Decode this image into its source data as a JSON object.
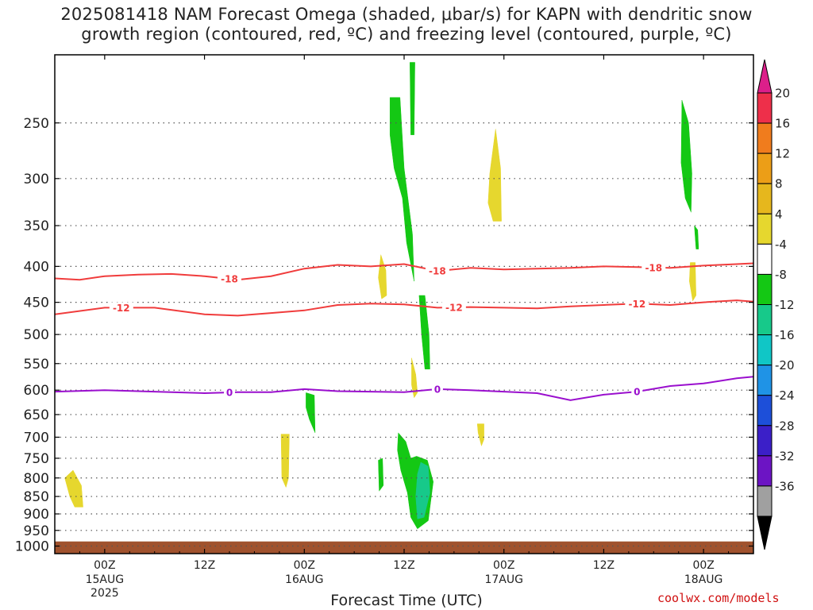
{
  "chart_data": {
    "type": "contour",
    "title_line1": "2025081418 NAM Forecast Omega (shaded, μbar/s) for KAPN with dendritic snow",
    "title_line2": "growth region (contoured, red, ºC) and freezing level (contoured, purple, ºC)",
    "xlabel": "Forecast Time (UTC)",
    "credit": "coolwx.com/models",
    "x_range_hours": [
      -6,
      78
    ],
    "y_axis": {
      "scale": "log-pressure",
      "unit": "hPa",
      "range": [
        1025,
        200
      ],
      "ticks": [
        250,
        300,
        350,
        400,
        450,
        500,
        550,
        600,
        650,
        700,
        750,
        800,
        850,
        900,
        950,
        1000
      ]
    },
    "x_ticks": [
      {
        "hour": 0,
        "line1": "00Z",
        "line2": "15AUG",
        "line3": "2025"
      },
      {
        "hour": 12,
        "line1": "12Z",
        "line2": "",
        "line3": ""
      },
      {
        "hour": 24,
        "line1": "00Z",
        "line2": "16AUG",
        "line3": ""
      },
      {
        "hour": 36,
        "line1": "12Z",
        "line2": "",
        "line3": ""
      },
      {
        "hour": 48,
        "line1": "00Z",
        "line2": "17AUG",
        "line3": ""
      },
      {
        "hour": 60,
        "line1": "12Z",
        "line2": "",
        "line3": ""
      },
      {
        "hour": 72,
        "line1": "00Z",
        "line2": "18AUG",
        "line3": ""
      }
    ],
    "colorbar": {
      "levels": [
        20,
        16,
        12,
        8,
        4,
        -4,
        -8,
        -12,
        -16,
        -20,
        -24,
        -28,
        -32,
        -36
      ],
      "colors": [
        "#ee2f4a",
        "#f07c1d",
        "#ec9e17",
        "#e6b71d",
        "#e6d72e",
        "#ffffff",
        "#14c814",
        "#17c98a",
        "#10c6c6",
        "#1f93e6",
        "#1d4fd9",
        "#3b1fc8",
        "#6c14c4",
        "#a20ac3",
        "#a0a0a0"
      ],
      "top_color": "#dc1f8a",
      "bottom_color": "#000000"
    },
    "contours": [
      {
        "label": "-18",
        "color": "#f03c3c",
        "points": [
          [
            -6,
            416
          ],
          [
            -3,
            418
          ],
          [
            0,
            413
          ],
          [
            4,
            411
          ],
          [
            8,
            410
          ],
          [
            12,
            413
          ],
          [
            16,
            418
          ],
          [
            20,
            413
          ],
          [
            24,
            403
          ],
          [
            28,
            398
          ],
          [
            32,
            400
          ],
          [
            36,
            397
          ],
          [
            40,
            406
          ],
          [
            44,
            402
          ],
          [
            48,
            404
          ],
          [
            52,
            403
          ],
          [
            56,
            402
          ],
          [
            60,
            400
          ],
          [
            64,
            401
          ],
          [
            68,
            402
          ],
          [
            72,
            399
          ],
          [
            76,
            397
          ],
          [
            78,
            396
          ]
        ]
      },
      {
        "label": "-12",
        "color": "#f03c3c",
        "points": [
          [
            -6,
            468
          ],
          [
            0,
            458
          ],
          [
            6,
            458
          ],
          [
            12,
            468
          ],
          [
            16,
            470
          ],
          [
            20,
            466
          ],
          [
            24,
            462
          ],
          [
            28,
            454
          ],
          [
            32,
            452
          ],
          [
            36,
            453
          ],
          [
            40,
            458
          ],
          [
            44,
            457
          ],
          [
            48,
            458
          ],
          [
            52,
            459
          ],
          [
            56,
            456
          ],
          [
            60,
            454
          ],
          [
            64,
            452
          ],
          [
            68,
            454
          ],
          [
            72,
            450
          ],
          [
            76,
            447
          ],
          [
            78,
            449
          ]
        ]
      },
      {
        "label": "0",
        "color": "#9a0fce",
        "points": [
          [
            -6,
            603
          ],
          [
            0,
            600
          ],
          [
            6,
            603
          ],
          [
            12,
            606
          ],
          [
            16,
            604
          ],
          [
            20,
            604
          ],
          [
            24,
            598
          ],
          [
            28,
            602
          ],
          [
            32,
            603
          ],
          [
            36,
            604
          ],
          [
            40,
            598
          ],
          [
            44,
            600
          ],
          [
            48,
            603
          ],
          [
            52,
            606
          ],
          [
            56,
            620
          ],
          [
            60,
            609
          ],
          [
            64,
            603
          ],
          [
            68,
            592
          ],
          [
            72,
            587
          ],
          [
            76,
            577
          ],
          [
            78,
            574
          ]
        ]
      }
    ],
    "contour_labels": [
      {
        "contour": "-18",
        "hour": 15
      },
      {
        "contour": "-18",
        "hour": 40
      },
      {
        "contour": "-18",
        "hour": 66
      },
      {
        "contour": "-12",
        "hour": 2
      },
      {
        "contour": "-12",
        "hour": 42
      },
      {
        "contour": "-12",
        "hour": 64
      },
      {
        "contour": "0",
        "hour": 15
      },
      {
        "contour": "0",
        "hour": 40
      },
      {
        "contour": "0",
        "hour": 64
      }
    ],
    "shaded_regions": [
      {
        "name": "upward-motion-upper-green",
        "value_range": [
          -8,
          -4
        ],
        "color": "#14c814",
        "points": [
          [
            34.3,
            230
          ],
          [
            35.5,
            230
          ],
          [
            36.0,
            290
          ],
          [
            37.0,
            360
          ],
          [
            37.2,
            420
          ],
          [
            36.3,
            370
          ],
          [
            35.8,
            320
          ],
          [
            34.8,
            290
          ],
          [
            34.3,
            260
          ]
        ]
      },
      {
        "name": "upward-motion-thin-top",
        "value_range": [
          -8,
          -4
        ],
        "color": "#14c814",
        "points": [
          [
            36.7,
            205
          ],
          [
            37.3,
            205
          ],
          [
            37.2,
            260
          ],
          [
            36.8,
            260
          ]
        ]
      },
      {
        "name": "upward-motion-mid-green",
        "value_range": [
          -8,
          -4
        ],
        "color": "#14c814",
        "points": [
          [
            37.8,
            440
          ],
          [
            38.5,
            440
          ],
          [
            39.0,
            500
          ],
          [
            39.1,
            560
          ],
          [
            38.5,
            560
          ],
          [
            38.1,
            500
          ]
        ]
      },
      {
        "name": "upward-motion-east-upper",
        "value_range": [
          -8,
          -4
        ],
        "color": "#14c814",
        "points": [
          [
            69.4,
            232
          ],
          [
            70.2,
            250
          ],
          [
            70.6,
            295
          ],
          [
            70.5,
            335
          ],
          [
            69.8,
            320
          ],
          [
            69.3,
            285
          ]
        ]
      },
      {
        "name": "upward-motion-east-small",
        "value_range": [
          -8,
          -4
        ],
        "color": "#14c814",
        "points": [
          [
            70.9,
            350
          ],
          [
            71.3,
            355
          ],
          [
            71.4,
            378
          ],
          [
            71.1,
            378
          ]
        ]
      },
      {
        "name": "upward-motion-16aug",
        "value_range": [
          -8,
          -4
        ],
        "color": "#14c814",
        "points": [
          [
            24.2,
            605
          ],
          [
            25.2,
            610
          ],
          [
            25.3,
            690
          ],
          [
            24.6,
            660
          ],
          [
            24.2,
            635
          ]
        ]
      },
      {
        "name": "upward-motion-small-left",
        "value_range": [
          -8,
          -4
        ],
        "color": "#14c814",
        "points": [
          [
            32.9,
            755
          ],
          [
            33.4,
            750
          ],
          [
            33.5,
            820
          ],
          [
            33.0,
            835
          ]
        ]
      },
      {
        "name": "upward-motion-lower-green",
        "value_range": [
          -8,
          -4
        ],
        "color": "#14c814",
        "points": [
          [
            35.3,
            690
          ],
          [
            36.2,
            710
          ],
          [
            36.8,
            750
          ],
          [
            37.5,
            745
          ],
          [
            38.8,
            755
          ],
          [
            39.5,
            810
          ],
          [
            38.9,
            920
          ],
          [
            37.6,
            945
          ],
          [
            36.8,
            910
          ],
          [
            36.4,
            840
          ],
          [
            35.6,
            780
          ],
          [
            35.2,
            730
          ]
        ]
      },
      {
        "name": "upward-motion-core",
        "value_range": [
          -12,
          -8
        ],
        "color": "#17c98a",
        "points": [
          [
            38.0,
            760
          ],
          [
            38.9,
            770
          ],
          [
            39.1,
            840
          ],
          [
            38.4,
            910
          ],
          [
            37.6,
            915
          ],
          [
            37.4,
            850
          ],
          [
            37.6,
            790
          ]
        ]
      },
      {
        "name": "sinking-motion-15aug",
        "value_range": [
          4,
          8
        ],
        "color": "#e6d72e",
        "points": [
          [
            -4.8,
            800
          ],
          [
            -3.8,
            780
          ],
          [
            -2.8,
            820
          ],
          [
            -2.6,
            880
          ],
          [
            -3.6,
            880
          ],
          [
            -4.2,
            850
          ]
        ]
      },
      {
        "name": "sinking-motion-16aug",
        "value_range": [
          4,
          8
        ],
        "color": "#e6d72e",
        "points": [
          [
            21.2,
            693
          ],
          [
            22.2,
            693
          ],
          [
            22.1,
            800
          ],
          [
            21.8,
            825
          ],
          [
            21.3,
            800
          ]
        ]
      },
      {
        "name": "sinking-motion-17aug-upper",
        "value_range": [
          4,
          8
        ],
        "color": "#e6d72e",
        "points": [
          [
            47.0,
            255
          ],
          [
            47.6,
            290
          ],
          [
            47.7,
            345
          ],
          [
            46.7,
            345
          ],
          [
            46.1,
            325
          ],
          [
            46.3,
            295
          ]
        ]
      },
      {
        "name": "sinking-motion-mid",
        "value_range": [
          4,
          8
        ],
        "color": "#e6d72e",
        "points": [
          [
            33.2,
            385
          ],
          [
            33.8,
            405
          ],
          [
            33.9,
            440
          ],
          [
            33.3,
            445
          ],
          [
            32.9,
            415
          ]
        ]
      },
      {
        "name": "sinking-motion-lower-mid",
        "value_range": [
          4,
          8
        ],
        "color": "#e6d72e",
        "points": [
          [
            36.9,
            540
          ],
          [
            37.4,
            570
          ],
          [
            37.6,
            605
          ],
          [
            37.2,
            615
          ],
          [
            36.9,
            590
          ]
        ]
      },
      {
        "name": "sinking-motion-small-right",
        "value_range": [
          4,
          8
        ],
        "color": "#e6d72e",
        "points": [
          [
            44.8,
            670
          ],
          [
            45.6,
            670
          ],
          [
            45.6,
            705
          ],
          [
            45.3,
            720
          ],
          [
            44.9,
            690
          ]
        ]
      },
      {
        "name": "sinking-motion-east",
        "value_range": [
          4,
          8
        ],
        "color": "#e6d72e",
        "points": [
          [
            70.4,
            395
          ],
          [
            71.0,
            395
          ],
          [
            71.1,
            440
          ],
          [
            70.7,
            448
          ],
          [
            70.3,
            420
          ]
        ]
      }
    ],
    "ground": {
      "color": "#a0522d",
      "top_hpa": 985
    },
    "grid": true
  }
}
